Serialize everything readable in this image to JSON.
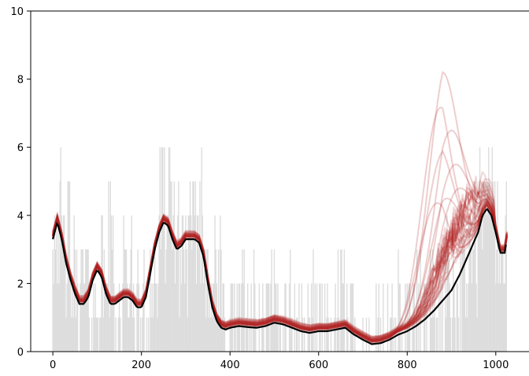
{
  "chart_data": {
    "type": "line",
    "title": "",
    "xlabel": "",
    "ylabel": "",
    "xlim": [
      -50,
      1075
    ],
    "ylim": [
      0,
      10
    ],
    "x_ticks": [
      0,
      200,
      400,
      600,
      800,
      1000
    ],
    "y_ticks": [
      0,
      2,
      4,
      6,
      8,
      10
    ],
    "x_tick_labels": [
      "0",
      "200",
      "400",
      "600",
      "800",
      "1000"
    ],
    "y_tick_labels": [
      "0",
      "2",
      "4",
      "6",
      "8",
      "10"
    ],
    "grid": false,
    "legend": "none",
    "colors": {
      "observed_counts": "#dddddd",
      "posterior_samples": "#b22222",
      "posterior_mean": "#000000"
    },
    "series": [
      {
        "role": "observed_counts",
        "style": "step",
        "x": [
          0,
          20,
          40,
          60,
          80,
          100,
          120,
          140,
          160,
          180,
          200,
          220,
          240,
          260,
          280,
          300,
          320,
          340,
          360,
          380,
          400,
          420,
          440,
          460,
          480,
          500,
          520,
          540,
          560,
          580,
          600,
          620,
          640,
          660,
          680,
          700,
          720,
          740,
          760,
          780,
          800,
          820,
          840,
          860,
          880,
          900,
          920,
          940,
          960,
          980,
          1000,
          1020
        ],
        "values": [
          4,
          3,
          2,
          2,
          1,
          2,
          3,
          1,
          2,
          1,
          1,
          2,
          4,
          4,
          3,
          3,
          4,
          3,
          2,
          1,
          1,
          1,
          1,
          0,
          1,
          1,
          1,
          1,
          0,
          1,
          1,
          0,
          1,
          1,
          0,
          0,
          0,
          0,
          0,
          1,
          1,
          1,
          1,
          1,
          2,
          2,
          2,
          3,
          4,
          5,
          3,
          3
        ]
      },
      {
        "role": "posterior_mean",
        "x": [
          0,
          10,
          20,
          30,
          40,
          50,
          60,
          70,
          80,
          90,
          100,
          110,
          120,
          130,
          140,
          150,
          160,
          170,
          180,
          190,
          200,
          210,
          220,
          230,
          240,
          250,
          260,
          270,
          280,
          290,
          300,
          310,
          320,
          330,
          340,
          350,
          360,
          370,
          380,
          390,
          400,
          420,
          440,
          460,
          480,
          500,
          520,
          540,
          560,
          580,
          600,
          620,
          640,
          660,
          680,
          700,
          720,
          740,
          760,
          780,
          800,
          820,
          840,
          860,
          880,
          900,
          920,
          940,
          960,
          970,
          980,
          990,
          1000,
          1010,
          1020,
          1025
        ],
        "values": [
          3.3,
          3.8,
          3.3,
          2.6,
          2.1,
          1.7,
          1.4,
          1.4,
          1.6,
          2.1,
          2.4,
          2.2,
          1.7,
          1.4,
          1.4,
          1.5,
          1.6,
          1.6,
          1.5,
          1.3,
          1.3,
          1.6,
          2.3,
          3.0,
          3.5,
          3.8,
          3.7,
          3.3,
          3.0,
          3.1,
          3.3,
          3.3,
          3.3,
          3.2,
          2.8,
          2.0,
          1.3,
          0.9,
          0.7,
          0.65,
          0.7,
          0.75,
          0.72,
          0.7,
          0.75,
          0.85,
          0.8,
          0.7,
          0.6,
          0.55,
          0.6,
          0.6,
          0.65,
          0.7,
          0.5,
          0.35,
          0.22,
          0.25,
          0.35,
          0.5,
          0.6,
          0.75,
          0.95,
          1.2,
          1.5,
          1.8,
          2.3,
          2.9,
          3.5,
          4.0,
          4.2,
          4.0,
          3.5,
          2.9,
          2.9,
          3.3
        ]
      },
      {
        "role": "posterior_samples",
        "count": 40,
        "note_values": "sample paths drawn around posterior mean with varying divergence after x≈780",
        "spread": 0.25,
        "peak_samples": [
          {
            "peak_x": 880,
            "peak": 8.2
          },
          {
            "peak_x": 860,
            "peak": 7.8
          },
          {
            "peak_x": 900,
            "peak": 6.5
          },
          {
            "peak_x": 870,
            "peak": 6.0
          },
          {
            "peak_x": 910,
            "peak": 5.5
          },
          {
            "peak_x": 850,
            "peak": 5.0
          },
          {
            "peak_x": 920,
            "peak": 4.8
          },
          {
            "peak_x": 890,
            "peak": 4.5
          }
        ]
      }
    ]
  }
}
